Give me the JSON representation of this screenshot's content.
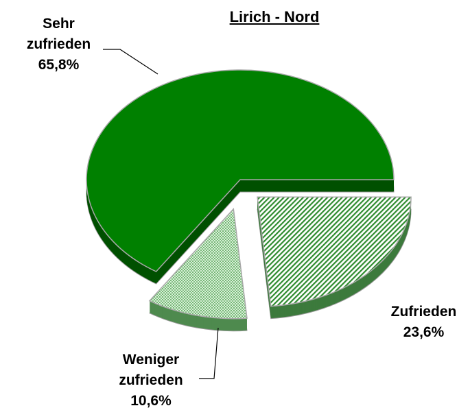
{
  "chart_data": {
    "type": "pie",
    "title": "Lirich - Nord",
    "categories": [
      "Sehr zufrieden",
      "Zufrieden",
      "Weniger zufrieden"
    ],
    "values": [
      65.8,
      23.6,
      10.6
    ],
    "value_labels": [
      "65,8%",
      "23,6%",
      "10,6%"
    ],
    "colors": [
      "#008000",
      "#7ccf7c",
      "#8fd08f"
    ]
  }
}
